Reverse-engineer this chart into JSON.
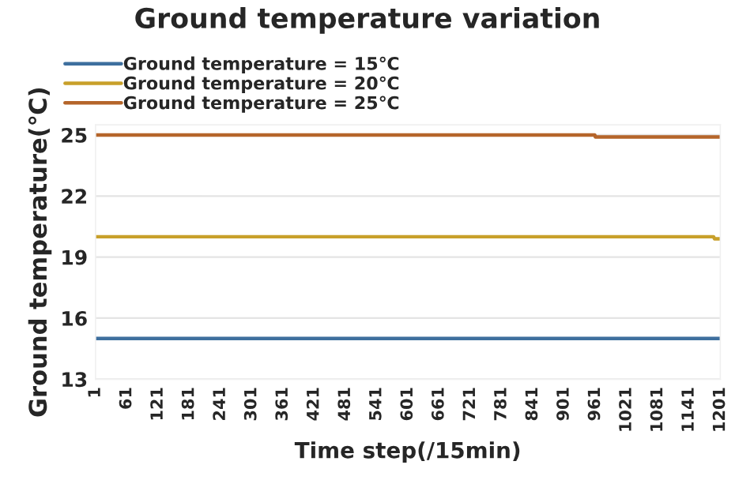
{
  "chart_data": {
    "type": "line",
    "title": "Ground temperature variation",
    "xlabel": "Time step(/15min)",
    "ylabel": "Ground temperature(℃)",
    "series": [
      {
        "name": "Ground temperature = 15℃",
        "color": "#3e6f9e",
        "x": [
          1,
          1201
        ],
        "values": [
          15,
          15
        ]
      },
      {
        "name": "Ground temperature = 20℃",
        "color": "#c8a02a",
        "x": [
          1,
          1188,
          1190,
          1201
        ],
        "values": [
          20,
          20,
          19.9,
          19.9
        ]
      },
      {
        "name": "Ground temperature = 25℃",
        "color": "#b5652a",
        "x": [
          1,
          960,
          961,
          1201
        ],
        "values": [
          25,
          25,
          24.9,
          24.9
        ]
      }
    ],
    "xlim": [
      1,
      1201
    ],
    "xticks": [
      1,
      61,
      121,
      181,
      241,
      301,
      361,
      421,
      481,
      541,
      601,
      661,
      721,
      781,
      841,
      901,
      961,
      1021,
      1081,
      1141,
      1201
    ],
    "ylim": [
      13,
      25.5
    ],
    "yticks": [
      13,
      16,
      19,
      22,
      25
    ],
    "grid": "y",
    "legend": "top left",
    "marker": "none",
    "line_style": "solid"
  }
}
